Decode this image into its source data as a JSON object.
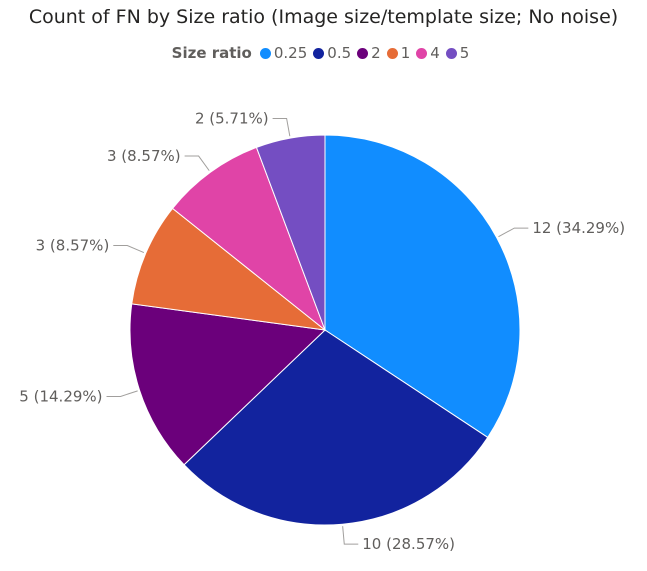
{
  "chart_data": {
    "type": "pie",
    "title": "Count of FN by Size ratio (Image size/template size; No noise)",
    "legend_title": "Size ratio",
    "legend_position": "top",
    "categories": [
      "0.25",
      "0.5",
      "2",
      "1",
      "4",
      "5"
    ],
    "values": [
      12,
      10,
      5,
      3,
      3,
      2
    ],
    "data_labels": [
      "12 (34.29%)",
      "10 (28.57%)",
      "5 (14.29%)",
      "3 (8.57%)",
      "3 (8.57%)",
      "2 (5.71%)"
    ],
    "colors": [
      "#118dff",
      "#12239e",
      "#6b007b",
      "#e66c37",
      "#e044a7",
      "#744ec2"
    ]
  }
}
